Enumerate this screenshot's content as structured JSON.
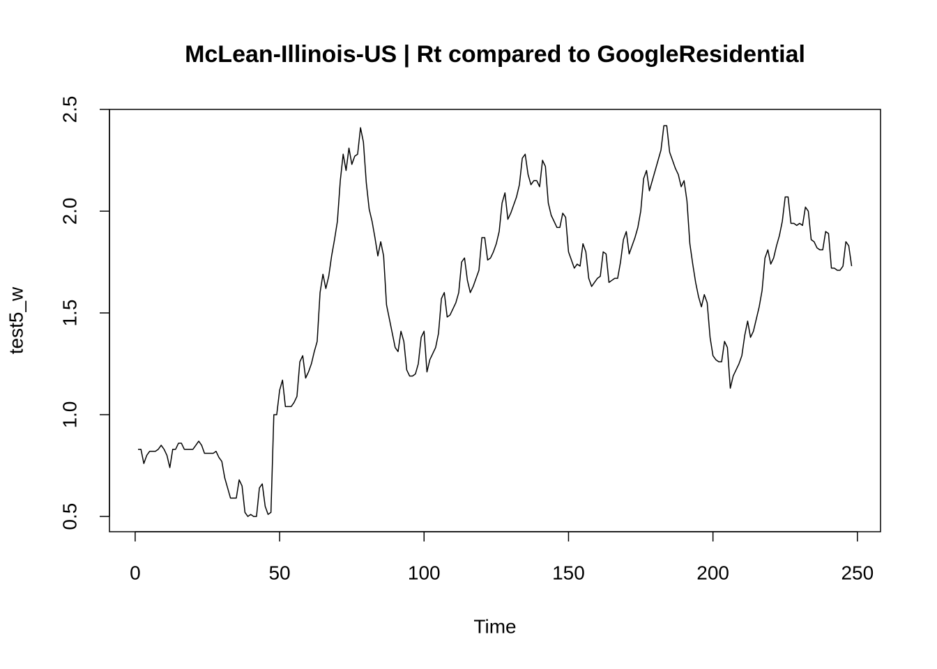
{
  "chart_data": {
    "type": "line",
    "title": "McLean-Illinois-US | Rt compared to GoogleResidential",
    "xlabel": "Time",
    "ylabel": "test5_w",
    "x": [
      1,
      2,
      3,
      4,
      5,
      6,
      7,
      8,
      9,
      10,
      11,
      12,
      13,
      14,
      15,
      16,
      17,
      18,
      19,
      20,
      21,
      22,
      23,
      24,
      25,
      26,
      27,
      28,
      29,
      30,
      31,
      32,
      33,
      34,
      35,
      36,
      37,
      38,
      39,
      40,
      41,
      42,
      43,
      44,
      45,
      46,
      47,
      48,
      49,
      50,
      51,
      52,
      53,
      54,
      55,
      56,
      57,
      58,
      59,
      60,
      61,
      62,
      63,
      64,
      65,
      66,
      67,
      68,
      69,
      70,
      71,
      72,
      73,
      74,
      75,
      76,
      77,
      78,
      79,
      80,
      81,
      82,
      83,
      84,
      85,
      86,
      87,
      88,
      89,
      90,
      91,
      92,
      93,
      94,
      95,
      96,
      97,
      98,
      99,
      100,
      101,
      102,
      103,
      104,
      105,
      106,
      107,
      108,
      109,
      110,
      111,
      112,
      113,
      114,
      115,
      116,
      117,
      118,
      119,
      120,
      121,
      122,
      123,
      124,
      125,
      126,
      127,
      128,
      129,
      130,
      131,
      132,
      133,
      134,
      135,
      136,
      137,
      138,
      139,
      140,
      141,
      142,
      143,
      144,
      145,
      146,
      147,
      148,
      149,
      150,
      151,
      152,
      153,
      154,
      155,
      156,
      157,
      158,
      159,
      160,
      161,
      162,
      163,
      164,
      165,
      166,
      167,
      168,
      169,
      170,
      171,
      172,
      173,
      174,
      175,
      176,
      177,
      178,
      179,
      180,
      181,
      182,
      183,
      184,
      185,
      186,
      187,
      188,
      189,
      190,
      191,
      192,
      193,
      194,
      195,
      196,
      197,
      198,
      199,
      200,
      201,
      202,
      203,
      204,
      205,
      206,
      207,
      208,
      209,
      210,
      211,
      212,
      213,
      214,
      215,
      216,
      217,
      218,
      219,
      220,
      221,
      222,
      223,
      224,
      225,
      226,
      227,
      228,
      229,
      230,
      231,
      232,
      233,
      234,
      235,
      236,
      237,
      238,
      239,
      240,
      241,
      242,
      243,
      244,
      245,
      246,
      247,
      248
    ],
    "values": [
      0.83,
      0.83,
      0.76,
      0.8,
      0.82,
      0.82,
      0.82,
      0.83,
      0.85,
      0.83,
      0.8,
      0.74,
      0.83,
      0.83,
      0.86,
      0.86,
      0.83,
      0.83,
      0.83,
      0.83,
      0.85,
      0.87,
      0.85,
      0.81,
      0.81,
      0.81,
      0.81,
      0.82,
      0.79,
      0.77,
      0.69,
      0.64,
      0.59,
      0.59,
      0.59,
      0.68,
      0.65,
      0.52,
      0.5,
      0.51,
      0.5,
      0.5,
      0.64,
      0.66,
      0.55,
      0.51,
      0.52,
      1.0,
      1.0,
      1.12,
      1.17,
      1.04,
      1.04,
      1.04,
      1.06,
      1.09,
      1.26,
      1.29,
      1.18,
      1.21,
      1.25,
      1.31,
      1.36,
      1.6,
      1.69,
      1.62,
      1.68,
      1.78,
      1.86,
      1.95,
      2.15,
      2.28,
      2.2,
      2.31,
      2.23,
      2.27,
      2.28,
      2.41,
      2.34,
      2.14,
      2.01,
      1.95,
      1.87,
      1.78,
      1.85,
      1.78,
      1.54,
      1.47,
      1.4,
      1.33,
      1.31,
      1.41,
      1.36,
      1.22,
      1.19,
      1.19,
      1.2,
      1.25,
      1.38,
      1.41,
      1.21,
      1.27,
      1.3,
      1.33,
      1.4,
      1.57,
      1.6,
      1.48,
      1.49,
      1.52,
      1.55,
      1.6,
      1.75,
      1.77,
      1.66,
      1.6,
      1.63,
      1.67,
      1.71,
      1.87,
      1.87,
      1.76,
      1.77,
      1.8,
      1.84,
      1.9,
      2.04,
      2.09,
      1.96,
      1.99,
      2.03,
      2.07,
      2.13,
      2.26,
      2.28,
      2.18,
      2.13,
      2.15,
      2.15,
      2.12,
      2.25,
      2.22,
      2.04,
      1.98,
      1.95,
      1.92,
      1.92,
      1.99,
      1.97,
      1.8,
      1.76,
      1.72,
      1.74,
      1.73,
      1.84,
      1.8,
      1.67,
      1.63,
      1.65,
      1.67,
      1.68,
      1.8,
      1.79,
      1.65,
      1.66,
      1.67,
      1.67,
      1.75,
      1.86,
      1.9,
      1.79,
      1.83,
      1.87,
      1.92,
      2.0,
      2.16,
      2.2,
      2.1,
      2.15,
      2.2,
      2.25,
      2.3,
      2.42,
      2.42,
      2.29,
      2.25,
      2.21,
      2.18,
      2.12,
      2.15,
      2.05,
      1.84,
      1.74,
      1.65,
      1.58,
      1.53,
      1.59,
      1.55,
      1.38,
      1.29,
      1.27,
      1.26,
      1.26,
      1.36,
      1.33,
      1.13,
      1.19,
      1.22,
      1.25,
      1.29,
      1.39,
      1.46,
      1.38,
      1.41,
      1.47,
      1.53,
      1.61,
      1.77,
      1.81,
      1.74,
      1.77,
      1.83,
      1.88,
      1.95,
      2.07,
      2.07,
      1.94,
      1.94,
      1.93,
      1.94,
      1.93,
      2.02,
      2.0,
      1.86,
      1.85,
      1.82,
      1.81,
      1.81,
      1.9,
      1.89,
      1.72,
      1.72,
      1.71,
      1.71,
      1.73,
      1.85,
      1.83,
      1.73
    ],
    "color": "#000000",
    "xlim": [
      -8.9,
      258
    ],
    "ylim": [
      0.425,
      2.5
    ],
    "xticks": [
      0,
      50,
      100,
      150,
      200,
      250
    ],
    "yticks": [
      0.5,
      {
        "value": 1.0,
        "label": "1.0"
      },
      1.5,
      {
        "value": 2.0,
        "label": "2.0"
      },
      2.5
    ]
  }
}
